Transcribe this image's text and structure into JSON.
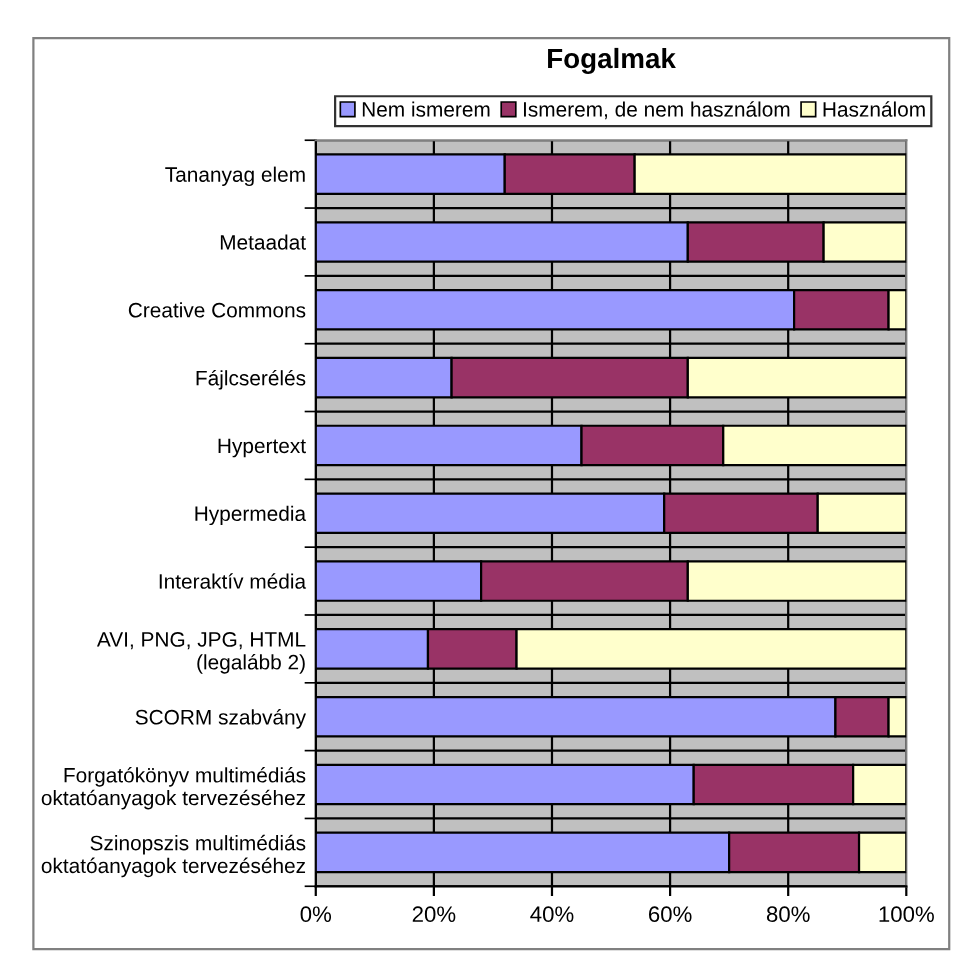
{
  "chart_data": {
    "type": "bar",
    "orientation": "horizontal",
    "stacked": true,
    "title": "Fogalmak",
    "categories": [
      "Tananyag elem",
      "Metaadat",
      "Creative Commons",
      "Fájlcserélés",
      "Hypertext",
      "Hypermedia",
      "Interaktív média",
      "AVI, PNG, JPG, HTML\n(legalább 2)",
      "SCORM szabvány",
      "Forgatókönyv multimédiás\noktatóanyagok tervezéséhez",
      "Szinopszis multimédiás\noktatóanyagok tervezéséhez"
    ],
    "series": [
      {
        "name": "Nem ismerem",
        "color": "#9999ff",
        "values": [
          32,
          63,
          81,
          23,
          45,
          59,
          28,
          19,
          88,
          64,
          70
        ]
      },
      {
        "name": "Ismerem, de nem használom",
        "color": "#993366",
        "values": [
          22,
          23,
          16,
          40,
          24,
          26,
          35,
          15,
          9,
          27,
          22
        ]
      },
      {
        "name": "Használom",
        "color": "#ffffcc",
        "values": [
          46,
          14,
          3,
          37,
          31,
          15,
          37,
          66,
          3,
          9,
          8
        ]
      }
    ],
    "xlim": [
      0,
      100
    ],
    "xticks": [
      {
        "value": 0,
        "label": "0%"
      },
      {
        "value": 20,
        "label": "20%"
      },
      {
        "value": 40,
        "label": "40%"
      },
      {
        "value": 60,
        "label": "60%"
      },
      {
        "value": 80,
        "label": "80%"
      },
      {
        "value": 100,
        "label": "100%"
      }
    ],
    "grid": true,
    "legend": "top"
  }
}
